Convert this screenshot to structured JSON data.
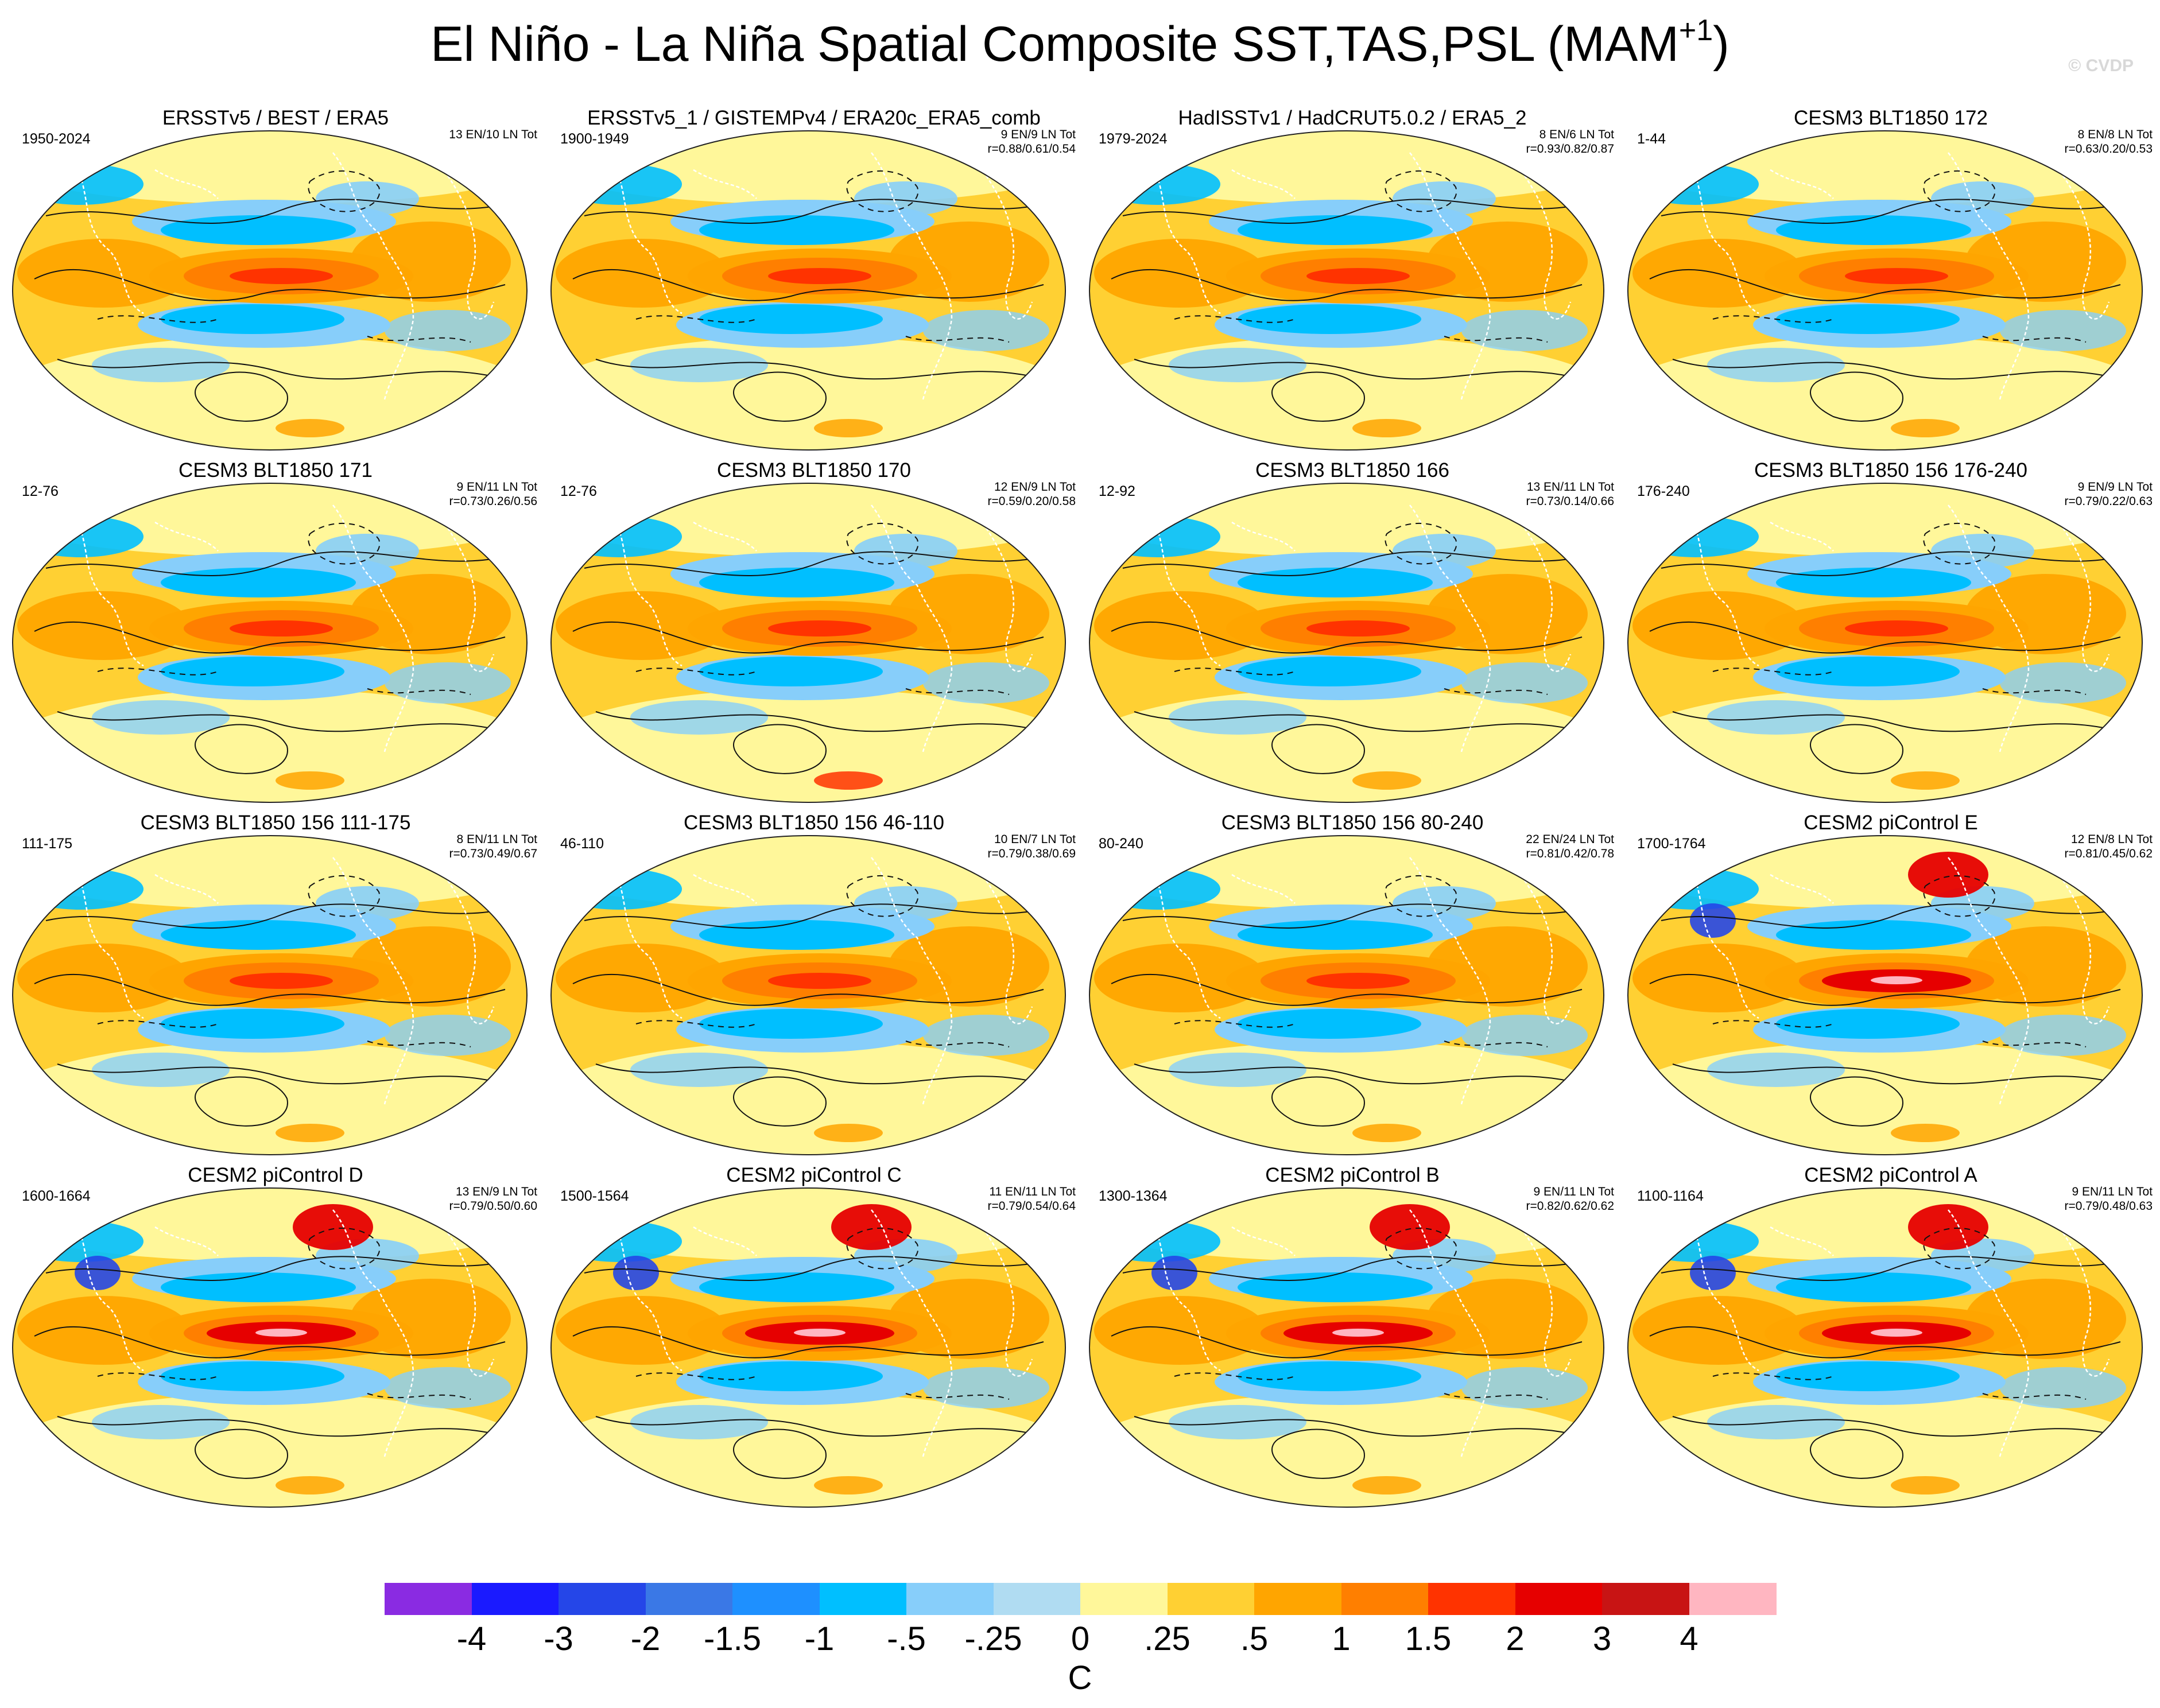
{
  "chart_data": {
    "type": "heatmap",
    "title": "El Niño - La Niña Spatial Composite SST,TAS,PSL (MAM",
    "title_superscript": "+1",
    "title_close": ")",
    "watermark": "© CVDP",
    "colorbar": {
      "unit": "C",
      "tick_labels": [
        "-4",
        "-3",
        "-2",
        "-1.5",
        "-1",
        "-.5",
        "-.25",
        "0",
        ".25",
        ".5",
        "1",
        "1.5",
        "2",
        "3",
        "4"
      ],
      "colors": [
        "#8a2be2",
        "#1a1aff",
        "#2546e8",
        "#3a78e6",
        "#1e90ff",
        "#00bfff",
        "#87cefa",
        "#b0dcf2",
        "#fff79a",
        "#ffd033",
        "#ffa500",
        "#ff7f00",
        "#ff3300",
        "#e60000",
        "#c81414",
        "#ffb6c1"
      ]
    },
    "panels": [
      {
        "title": "ERSSTv5 / BEST / ERA5",
        "years": "1950-2024",
        "counts": "13 EN/10 LN Tot",
        "corr": ""
      },
      {
        "title": "ERSSTv5_1 / GISTEMPv4 / ERA20c_ERA5_comb",
        "years": "1900-1949",
        "counts": "9 EN/9 LN Tot",
        "corr": "r=0.88/0.61/0.54"
      },
      {
        "title": "HadISSTv1 / HadCRUT5.0.2 / ERA5_2",
        "years": "1979-2024",
        "counts": "8 EN/6 LN Tot",
        "corr": "r=0.93/0.82/0.87"
      },
      {
        "title": "CESM3 BLT1850 172",
        "years": "1-44",
        "counts": "8 EN/8 LN Tot",
        "corr": "r=0.63/0.20/0.53"
      },
      {
        "title": "CESM3 BLT1850 171",
        "years": "12-76",
        "counts": "9 EN/11 LN Tot",
        "corr": "r=0.73/0.26/0.56"
      },
      {
        "title": "CESM3 BLT1850 170",
        "years": "12-76",
        "counts": "12 EN/9 LN Tot",
        "corr": "r=0.59/0.20/0.58"
      },
      {
        "title": "CESM3 BLT1850 166",
        "years": "12-92",
        "counts": "13 EN/11 LN Tot",
        "corr": "r=0.73/0.14/0.66"
      },
      {
        "title": "CESM3 BLT1850 156 176-240",
        "years": "176-240",
        "counts": "9 EN/9 LN Tot",
        "corr": "r=0.79/0.22/0.63"
      },
      {
        "title": "CESM3 BLT1850 156 111-175",
        "years": "111-175",
        "counts": "8 EN/11 LN Tot",
        "corr": "r=0.73/0.49/0.67"
      },
      {
        "title": "CESM3 BLT1850 156 46-110",
        "years": "46-110",
        "counts": "10 EN/7 LN Tot",
        "corr": "r=0.79/0.38/0.69"
      },
      {
        "title": "CESM3 BLT1850 156 80-240",
        "years": "80-240",
        "counts": "22 EN/24 LN Tot",
        "corr": "r=0.81/0.42/0.78"
      },
      {
        "title": "CESM2 piControl E",
        "years": "1700-1764",
        "counts": "12 EN/8 LN Tot",
        "corr": "r=0.81/0.45/0.62"
      },
      {
        "title": "CESM2 piControl D",
        "years": "1600-1664",
        "counts": "13 EN/9 LN Tot",
        "corr": "r=0.79/0.50/0.60"
      },
      {
        "title": "CESM2 piControl C",
        "years": "1500-1564",
        "counts": "11 EN/11 LN Tot",
        "corr": "r=0.79/0.54/0.64"
      },
      {
        "title": "CESM2 piControl B",
        "years": "1300-1364",
        "counts": "9 EN/11 LN Tot",
        "corr": "r=0.82/0.62/0.62"
      },
      {
        "title": "CESM2 piControl A",
        "years": "1100-1164",
        "counts": "9 EN/11 LN Tot",
        "corr": "r=0.79/0.48/0.63"
      }
    ]
  }
}
